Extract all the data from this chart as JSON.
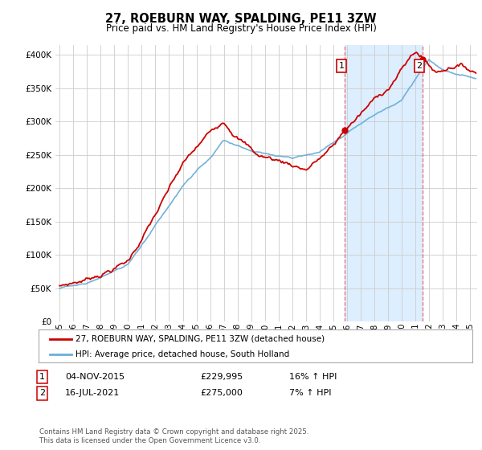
{
  "title": "27, ROEBURN WAY, SPALDING, PE11 3ZW",
  "subtitle": "Price paid vs. HM Land Registry's House Price Index (HPI)",
  "ytick_values": [
    0,
    50000,
    100000,
    150000,
    200000,
    250000,
    300000,
    350000,
    400000
  ],
  "ylim": [
    0,
    415000
  ],
  "xlim_start": 1994.7,
  "xlim_end": 2025.5,
  "hpi_color": "#6baed6",
  "price_color": "#cc0000",
  "vline_color": "#ee5555",
  "marker1_year": 2015.84,
  "marker2_year": 2021.54,
  "annotation1": {
    "num": "1",
    "date": "04-NOV-2015",
    "price": "£229,995",
    "hpi": "16% ↑ HPI"
  },
  "annotation2": {
    "num": "2",
    "date": "16-JUL-2021",
    "price": "£275,000",
    "hpi": "7% ↑ HPI"
  },
  "legend_label_red": "27, ROEBURN WAY, SPALDING, PE11 3ZW (detached house)",
  "legend_label_blue": "HPI: Average price, detached house, South Holland",
  "footnote": "Contains HM Land Registry data © Crown copyright and database right 2025.\nThis data is licensed under the Open Government Licence v3.0.",
  "background_color": "#ffffff",
  "grid_color": "#cccccc",
  "span_color": "#ddeeff",
  "sale1_price": 229995,
  "sale2_price": 275000
}
